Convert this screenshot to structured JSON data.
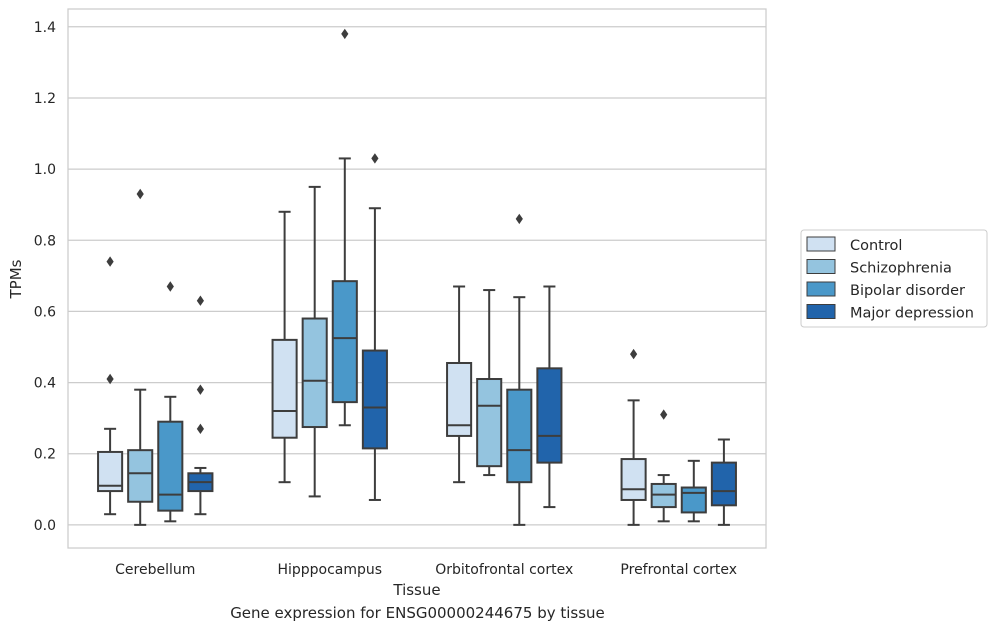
{
  "caption": "Gene expression for ENSG00000244675 by tissue",
  "chart_data": {
    "type": "box",
    "xlabel": "Tissue",
    "ylabel": "TPMs",
    "ylim": [
      -0.065,
      1.45
    ],
    "yticks": [
      0.0,
      0.2,
      0.4,
      0.6,
      0.8,
      1.0,
      1.2,
      1.4
    ],
    "ytick_labels": [
      "0.0",
      "0.2",
      "0.4",
      "0.6",
      "0.8",
      "1.0",
      "1.2",
      "1.4"
    ],
    "categories": [
      "Cerebellum",
      "Hipppocampus",
      "Orbitofrontal cortex",
      "Prefrontal cortex"
    ],
    "grid": "horizontal",
    "legend_position": "right",
    "series": [
      {
        "name": "Control",
        "color": "#d0e1f2",
        "boxes": [
          {
            "whisker_low": 0.03,
            "q1": 0.095,
            "median": 0.11,
            "q3": 0.205,
            "whisker_high": 0.27,
            "outliers": [
              0.41,
              0.74
            ]
          },
          {
            "whisker_low": 0.12,
            "q1": 0.245,
            "median": 0.32,
            "q3": 0.52,
            "whisker_high": 0.88,
            "outliers": []
          },
          {
            "whisker_low": 0.12,
            "q1": 0.25,
            "median": 0.28,
            "q3": 0.455,
            "whisker_high": 0.67,
            "outliers": []
          },
          {
            "whisker_low": 0.0,
            "q1": 0.07,
            "median": 0.1,
            "q3": 0.185,
            "whisker_high": 0.35,
            "outliers": [
              0.48
            ]
          }
        ]
      },
      {
        "name": "Schizophrenia",
        "color": "#94c4df",
        "boxes": [
          {
            "whisker_low": 0.0,
            "q1": 0.065,
            "median": 0.145,
            "q3": 0.21,
            "whisker_high": 0.38,
            "outliers": [
              0.93
            ]
          },
          {
            "whisker_low": 0.08,
            "q1": 0.275,
            "median": 0.405,
            "q3": 0.58,
            "whisker_high": 0.95,
            "outliers": []
          },
          {
            "whisker_low": 0.14,
            "q1": 0.165,
            "median": 0.335,
            "q3": 0.41,
            "whisker_high": 0.66,
            "outliers": []
          },
          {
            "whisker_low": 0.01,
            "q1": 0.05,
            "median": 0.085,
            "q3": 0.115,
            "whisker_high": 0.14,
            "outliers": [
              0.31
            ]
          }
        ]
      },
      {
        "name": "Bipolar disorder",
        "color": "#4a98c9",
        "boxes": [
          {
            "whisker_low": 0.01,
            "q1": 0.04,
            "median": 0.085,
            "q3": 0.29,
            "whisker_high": 0.36,
            "outliers": [
              0.67
            ]
          },
          {
            "whisker_low": 0.28,
            "q1": 0.345,
            "median": 0.525,
            "q3": 0.685,
            "whisker_high": 1.03,
            "outliers": [
              1.38
            ]
          },
          {
            "whisker_low": 0.0,
            "q1": 0.12,
            "median": 0.21,
            "q3": 0.38,
            "whisker_high": 0.64,
            "outliers": [
              0.86
            ]
          },
          {
            "whisker_low": 0.01,
            "q1": 0.035,
            "median": 0.09,
            "q3": 0.105,
            "whisker_high": 0.18,
            "outliers": []
          }
        ]
      },
      {
        "name": "Major depression",
        "color": "#2164ab",
        "boxes": [
          {
            "whisker_low": 0.03,
            "q1": 0.095,
            "median": 0.12,
            "q3": 0.145,
            "whisker_high": 0.16,
            "outliers": [
              0.27,
              0.38,
              0.63
            ]
          },
          {
            "whisker_low": 0.07,
            "q1": 0.215,
            "median": 0.33,
            "q3": 0.49,
            "whisker_high": 0.89,
            "outliers": [
              1.03
            ]
          },
          {
            "whisker_low": 0.05,
            "q1": 0.175,
            "median": 0.25,
            "q3": 0.44,
            "whisker_high": 0.67,
            "outliers": []
          },
          {
            "whisker_low": 0.0,
            "q1": 0.055,
            "median": 0.095,
            "q3": 0.175,
            "whisker_high": 0.24,
            "outliers": []
          }
        ]
      }
    ]
  }
}
